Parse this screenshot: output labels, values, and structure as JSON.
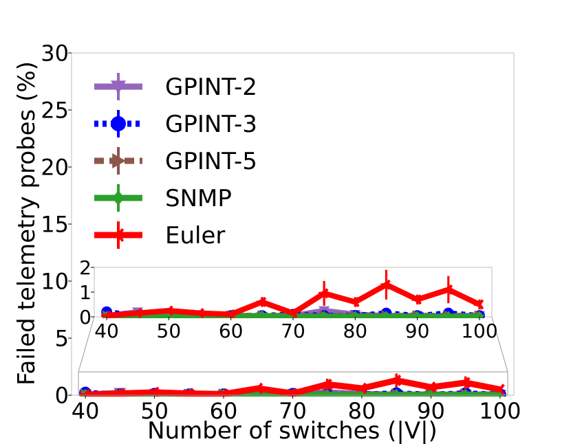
{
  "chart_data": {
    "type": "line",
    "xlabel": "Number of switches (|V|)",
    "ylabel": "Failed telemetry probes (%)",
    "xlim": [
      38,
      102
    ],
    "ylim": [
      0,
      30
    ],
    "x_ticks": [
      "40",
      "50",
      "60",
      "70",
      "80",
      "90",
      "100"
    ],
    "y_ticks": [
      "0",
      "5",
      "10",
      "15",
      "20",
      "25",
      "30"
    ],
    "x": [
      40,
      45,
      50,
      55,
      60,
      65,
      70,
      75,
      80,
      85,
      90,
      95,
      100
    ],
    "legend_position": "top-left",
    "series": [
      {
        "name": "GPINT-2",
        "color": "#9467bd",
        "marker": "triangle-down",
        "linestyle": "solid",
        "values": [
          0.05,
          0.2,
          0.05,
          0.05,
          0.02,
          0.02,
          0.05,
          0.25,
          0.1,
          0.05,
          0.05,
          0.05,
          0.05
        ]
      },
      {
        "name": "GPINT-3",
        "color": "#0000ff",
        "marker": "circle",
        "linestyle": "dotted",
        "values": [
          0.2,
          0.05,
          0.1,
          0.05,
          0.05,
          0.05,
          0.1,
          0.05,
          0.05,
          0.15,
          0.05,
          0.15,
          0.05
        ]
      },
      {
        "name": "GPINT-5",
        "color": "#8c564b",
        "marker": "triangle-right",
        "linestyle": "dashed",
        "values": [
          0.05,
          0.05,
          0.05,
          0.05,
          0.05,
          0.05,
          0.05,
          0.05,
          0.05,
          0.05,
          0.05,
          0.05,
          0.05
        ]
      },
      {
        "name": "SNMP",
        "color": "#2ca02c",
        "marker": "diamond",
        "linestyle": "solid",
        "values": [
          0.02,
          0.02,
          0.02,
          0.02,
          0.02,
          0.05,
          0.02,
          0.02,
          0.02,
          0.02,
          0.02,
          0.02,
          0.02
        ]
      },
      {
        "name": "Euler",
        "color": "#ff0000",
        "marker": "tri-left",
        "linestyle": "solid",
        "values": [
          0.05,
          0.15,
          0.25,
          0.15,
          0.1,
          0.6,
          0.15,
          0.95,
          0.6,
          1.3,
          0.7,
          1.1,
          0.5
        ],
        "errors": [
          0.05,
          0.05,
          0.05,
          0.05,
          0.05,
          0.2,
          0.05,
          0.5,
          0.2,
          0.6,
          0.2,
          0.55,
          0.2
        ]
      }
    ],
    "inset": {
      "xlim": [
        38,
        102
      ],
      "ylim": [
        0,
        2
      ],
      "x_ticks": [
        "40",
        "50",
        "60",
        "70",
        "80",
        "90",
        "100"
      ],
      "y_ticks": [
        "0",
        "1",
        "2"
      ]
    }
  }
}
